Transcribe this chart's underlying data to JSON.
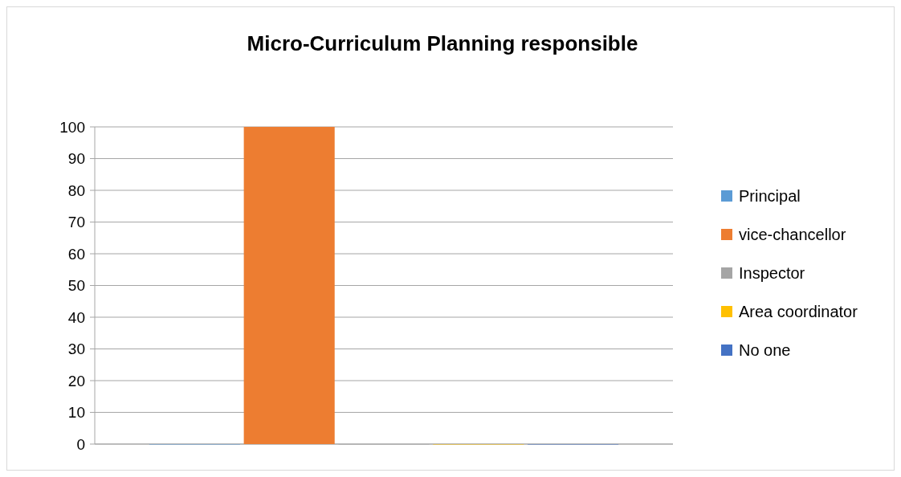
{
  "chart_data": {
    "type": "bar",
    "title": "Micro-Curriculum Planning responsible",
    "categories": [
      null
    ],
    "series": [
      {
        "name": "Principal",
        "color": "#5b9bd5",
        "values": [
          0
        ]
      },
      {
        "name": "vice-chancellor",
        "color": "#ed7d31",
        "values": [
          100
        ]
      },
      {
        "name": "Inspector",
        "color": "#a5a5a5",
        "values": [
          0
        ]
      },
      {
        "name": "Area coordinator",
        "color": "#ffc000",
        "values": [
          0
        ]
      },
      {
        "name": "No one",
        "color": "#4472c4",
        "values": [
          0
        ]
      }
    ],
    "ylim": [
      0,
      100
    ],
    "yticks": [
      0,
      10,
      20,
      30,
      40,
      50,
      60,
      70,
      80,
      90,
      100
    ],
    "grid": "y",
    "legend": "right"
  }
}
